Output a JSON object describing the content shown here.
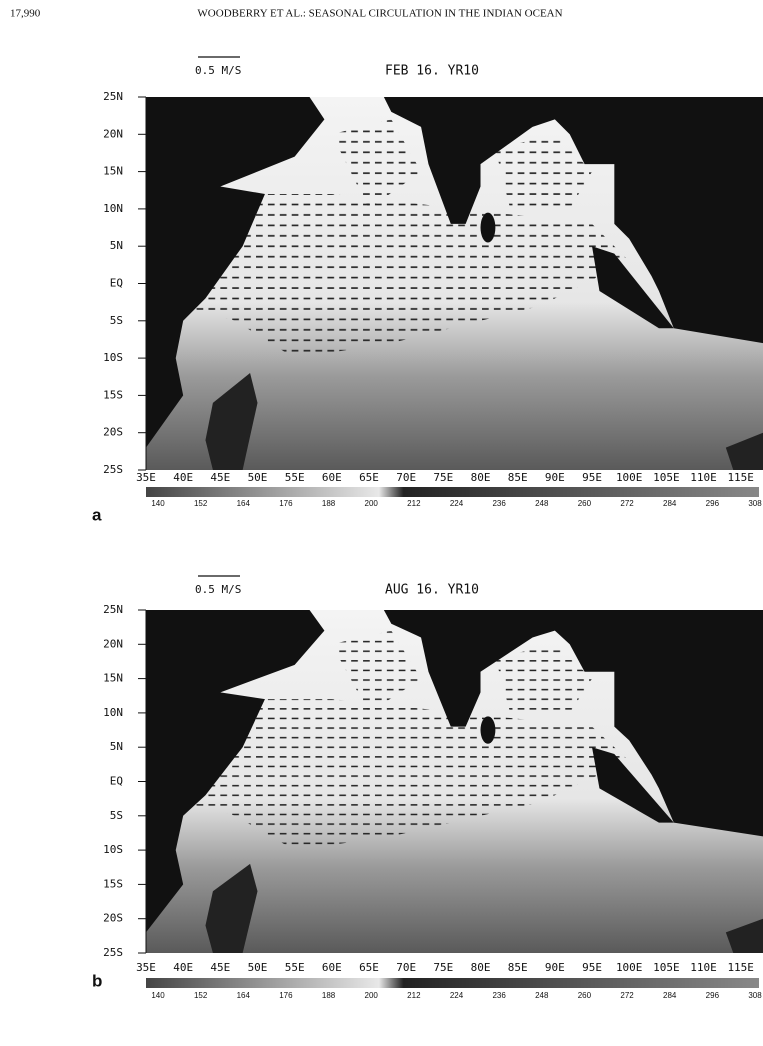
{
  "header": {
    "page_number": "17,990",
    "running_title": "WOODBERRY ET AL.: SEASONAL CIRCULATION IN THE INDIAN OCEAN"
  },
  "panels": [
    {
      "letter": "a",
      "scale_label": "0.5 M/S",
      "title": "FEB 16. YR10",
      "y_labels": [
        "25N",
        "20N",
        "15N",
        "10N",
        "5N",
        "EQ",
        "5S",
        "10S",
        "15S",
        "20S",
        "25S"
      ],
      "x_labels": [
        "35E",
        "40E",
        "45E",
        "50E",
        "55E",
        "60E",
        "65E",
        "70E",
        "75E",
        "80E",
        "85E",
        "90E",
        "95E",
        "100E",
        "105E",
        "110E",
        "115E"
      ],
      "colorbar_labels": [
        "140",
        "152",
        "164",
        "176",
        "188",
        "200",
        "212",
        "224",
        "236",
        "248",
        "260",
        "272",
        "284",
        "296",
        "308"
      ]
    },
    {
      "letter": "b",
      "scale_label": "0.5 M/S",
      "title": "AUG 16. YR10",
      "y_labels": [
        "25N",
        "20N",
        "15N",
        "10N",
        "5N",
        "EQ",
        "5S",
        "10S",
        "15S",
        "20S",
        "25S"
      ],
      "x_labels": [
        "35E",
        "40E",
        "45E",
        "50E",
        "55E",
        "60E",
        "65E",
        "70E",
        "75E",
        "80E",
        "85E",
        "90E",
        "95E",
        "100E",
        "105E",
        "110E",
        "115E"
      ],
      "colorbar_labels": [
        "140",
        "152",
        "164",
        "176",
        "188",
        "200",
        "212",
        "224",
        "236",
        "248",
        "260",
        "272",
        "284",
        "296",
        "308"
      ]
    }
  ]
}
